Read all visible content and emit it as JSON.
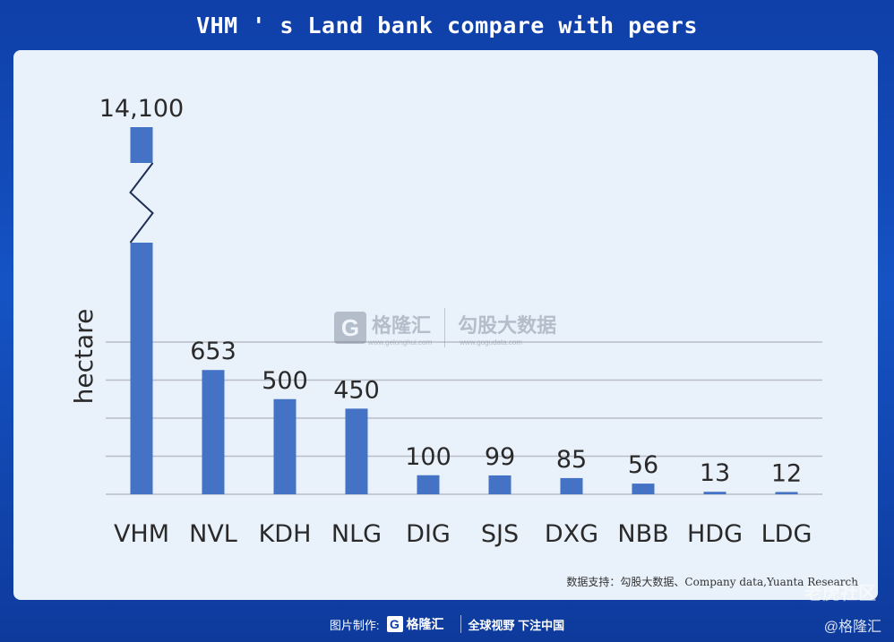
{
  "header": {
    "title": "VHM ' s Land bank compare with peers"
  },
  "chart_data": {
    "type": "bar",
    "categories": [
      "VHM",
      "NVL",
      "KDH",
      "NLG",
      "DIG",
      "SJS",
      "DXG",
      "NBB",
      "HDG",
      "LDG"
    ],
    "values": [
      14100,
      653,
      500,
      450,
      100,
      99,
      85,
      56,
      13,
      12
    ],
    "value_labels": [
      "14,100",
      "653",
      "500",
      "450",
      "100",
      "99",
      "85",
      "56",
      "13",
      "12"
    ],
    "title": "VHM ' s Land bank compare with peers",
    "xlabel": "",
    "ylabel": "hectare",
    "ylim": [
      0,
      800
    ],
    "axis_break": true,
    "grid": true,
    "bar_color": "#4472c4"
  },
  "source": "数据支持：勾股大数据、Company data,Yuanta Research",
  "watermark": {
    "logo_glyph": "G",
    "name": "格隆汇",
    "url": "www.gelonghui.com",
    "name2": "勾股大数据",
    "url2": "www.gogudata.com"
  },
  "footer": {
    "made_by": "图片制作:",
    "logo_glyph": "G",
    "logo_text": "格隆汇",
    "slogan": "全球视野 下注中国"
  },
  "corner": {
    "community": "老虎社区",
    "handle": "@格隆汇"
  }
}
